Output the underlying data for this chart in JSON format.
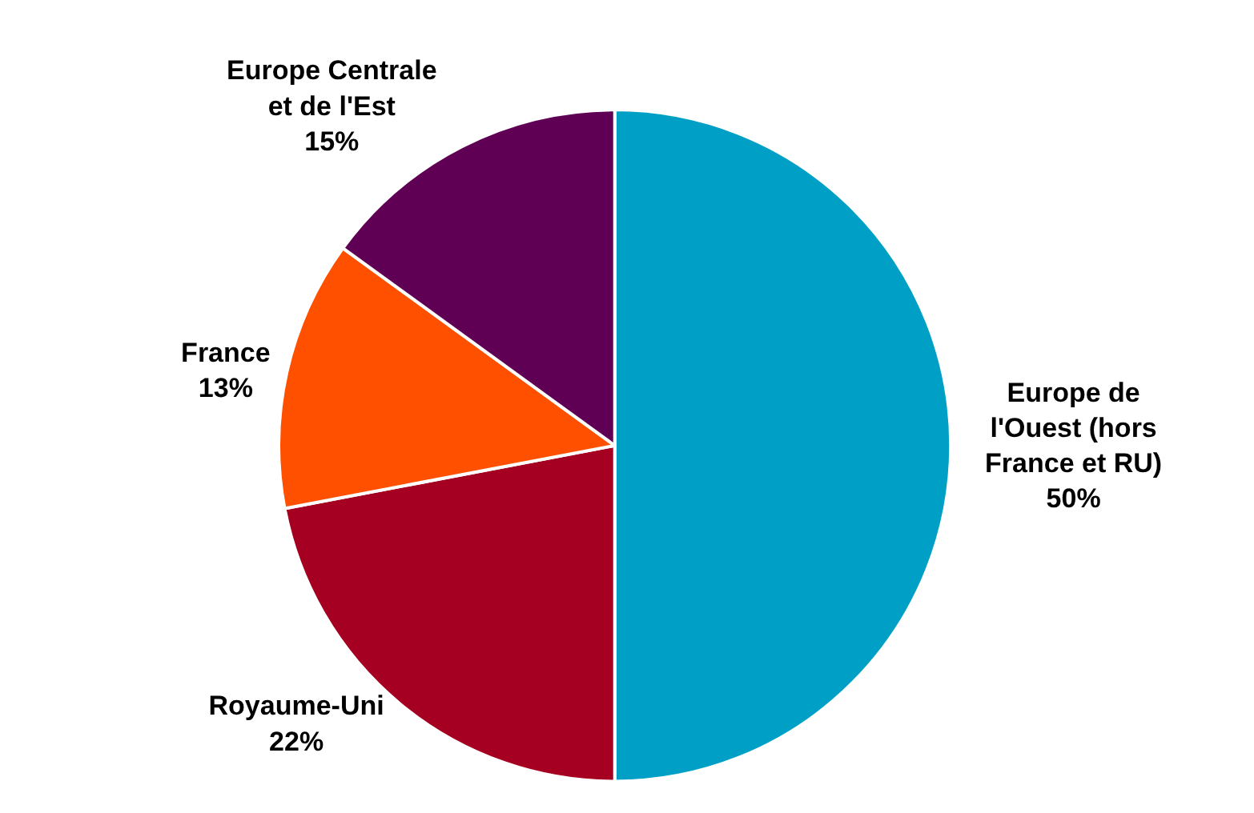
{
  "chart_data": {
    "type": "pie",
    "categories": [
      "Europe de l'Ouest (hors France et RU)",
      "Royaume-Uni",
      "France",
      "Europe Centrale et de l'Est"
    ],
    "values": [
      50,
      22,
      13,
      15
    ],
    "colors": [
      "#00a0c6",
      "#a50021",
      "#ff5000",
      "#5f0055"
    ],
    "value_labels": [
      "50%",
      "22%",
      "13%",
      "15%"
    ],
    "legend": false
  }
}
